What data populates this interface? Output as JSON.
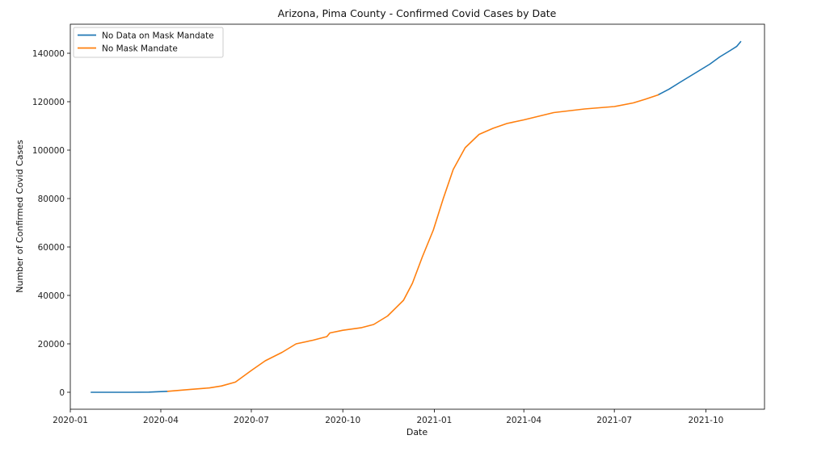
{
  "chart_data": {
    "type": "line",
    "title": "Arizona, Pima County - Confirmed Covid Cases by Date",
    "xlabel": "Date",
    "ylabel": "Number of Confirmed Covid Cases",
    "x_range": [
      "2020-01-01",
      "2021-11-29"
    ],
    "y_range": [
      -7000,
      152000
    ],
    "x_ticks": [
      "2020-01",
      "2020-04",
      "2020-07",
      "2020-10",
      "2021-01",
      "2021-04",
      "2021-07",
      "2021-10"
    ],
    "y_ticks": [
      0,
      20000,
      40000,
      60000,
      80000,
      100000,
      120000,
      140000
    ],
    "grid": false,
    "legend_position": "top-left",
    "series": [
      {
        "name": "No Data on Mask Mandate",
        "color": "#1f77b4",
        "points": [
          [
            "2020-01-22",
            0
          ],
          [
            "2020-02-15",
            0
          ],
          [
            "2020-03-01",
            0
          ],
          [
            "2020-03-20",
            80
          ],
          [
            "2020-04-08",
            400
          ],
          [
            "2021-08-14",
            122800
          ],
          [
            "2021-08-25",
            125200
          ],
          [
            "2021-09-05",
            128000
          ],
          [
            "2021-09-15",
            130500
          ],
          [
            "2021-09-25",
            133000
          ],
          [
            "2021-10-05",
            135500
          ],
          [
            "2021-10-15",
            138500
          ],
          [
            "2021-10-25",
            141000
          ],
          [
            "2021-11-01",
            142800
          ],
          [
            "2021-11-05",
            144800
          ]
        ]
      },
      {
        "name": "No Mask Mandate",
        "color": "#ff7f0e",
        "points": [
          [
            "2020-04-08",
            400
          ],
          [
            "2020-05-01",
            1200
          ],
          [
            "2020-05-20",
            1800
          ],
          [
            "2020-06-01",
            2600
          ],
          [
            "2020-06-15",
            4200
          ],
          [
            "2020-07-01",
            9000
          ],
          [
            "2020-07-15",
            13000
          ],
          [
            "2020-08-01",
            16500
          ],
          [
            "2020-08-15",
            20000
          ],
          [
            "2020-09-01",
            21500
          ],
          [
            "2020-09-15",
            23000
          ],
          [
            "2020-09-18",
            24500
          ],
          [
            "2020-10-01",
            25600
          ],
          [
            "2020-10-20",
            26700
          ],
          [
            "2020-11-01",
            28000
          ],
          [
            "2020-11-15",
            31500
          ],
          [
            "2020-12-01",
            38000
          ],
          [
            "2020-12-10",
            45000
          ],
          [
            "2020-12-20",
            56000
          ],
          [
            "2020-12-31",
            67000
          ],
          [
            "2021-01-10",
            80000
          ],
          [
            "2021-01-20",
            92000
          ],
          [
            "2021-02-01",
            101000
          ],
          [
            "2021-02-15",
            106500
          ],
          [
            "2021-03-01",
            109000
          ],
          [
            "2021-03-15",
            111000
          ],
          [
            "2021-04-01",
            112500
          ],
          [
            "2021-05-01",
            115500
          ],
          [
            "2021-06-01",
            117000
          ],
          [
            "2021-07-01",
            118000
          ],
          [
            "2021-07-20",
            119500
          ],
          [
            "2021-08-01",
            121000
          ],
          [
            "2021-08-14",
            122800
          ]
        ]
      }
    ]
  }
}
